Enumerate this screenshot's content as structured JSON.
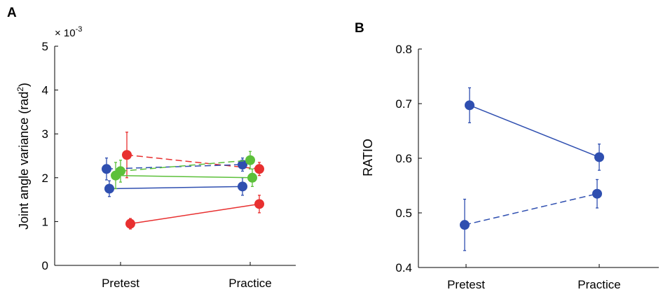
{
  "chart_data": [
    {
      "panel_label": "A",
      "type": "line",
      "ylabel": "Joint angle variance (rad",
      "ylabel_superscript": "2",
      "ylabel_close": ")",
      "y_multiplier_prefix": "× 10",
      "y_multiplier_exponent": "-3",
      "categories": [
        "Pretest",
        "Practice"
      ],
      "ylim": [
        0,
        5
      ],
      "yticks": [
        "0",
        "1",
        "2",
        "3",
        "4",
        "5"
      ],
      "grid": false,
      "series": [
        {
          "color": "#e83030",
          "dash": true,
          "values": [
            2.52,
            2.2
          ],
          "errors": [
            0.52,
            0.15
          ]
        },
        {
          "color": "#e83030",
          "dash": false,
          "values": [
            0.95,
            1.4
          ],
          "errors": [
            0.12,
            0.2
          ]
        },
        {
          "color": "#2f4fb0",
          "dash": true,
          "values": [
            2.2,
            2.3
          ],
          "errors": [
            0.25,
            0.15
          ]
        },
        {
          "color": "#2f4fb0",
          "dash": false,
          "values": [
            1.75,
            1.8
          ],
          "errors": [
            0.18,
            0.2
          ]
        },
        {
          "color": "#5cc03a",
          "dash": true,
          "values": [
            2.15,
            2.4
          ],
          "errors": [
            0.25,
            0.2
          ]
        },
        {
          "color": "#5cc03a",
          "dash": false,
          "values": [
            2.05,
            2.0
          ],
          "errors": [
            0.3,
            0.2
          ]
        }
      ]
    },
    {
      "panel_label": "B",
      "type": "line",
      "ylabel": "RATIO",
      "categories": [
        "Pretest",
        "Practice"
      ],
      "ylim": [
        0.4,
        0.8
      ],
      "yticks": [
        "0.4",
        "0.5",
        "0.6",
        "0.7",
        "0.8"
      ],
      "grid": false,
      "series": [
        {
          "color": "#2f4fb0",
          "dash": false,
          "values": [
            0.697,
            0.602
          ],
          "errors": [
            0.032,
            0.024
          ]
        },
        {
          "color": "#2f4fb0",
          "dash": true,
          "values": [
            0.478,
            0.535
          ],
          "errors": [
            0.047,
            0.026
          ]
        }
      ]
    }
  ]
}
